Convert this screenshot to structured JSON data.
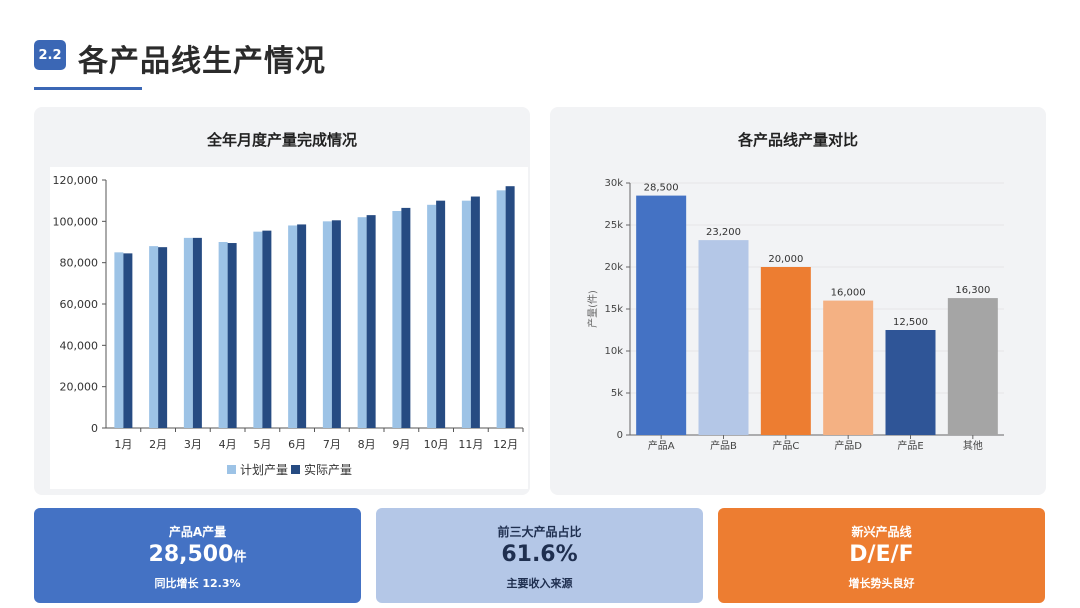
{
  "header": {
    "badge": "2.2",
    "title": "各产品线生产情况"
  },
  "chart_data": [
    {
      "type": "bar",
      "title": "全年月度产量完成情况",
      "categories": [
        "1月",
        "2月",
        "3月",
        "4月",
        "5月",
        "6月",
        "7月",
        "8月",
        "9月",
        "10月",
        "11月",
        "12月"
      ],
      "series": [
        {
          "name": "计划产量",
          "color": "#9dc3e6",
          "values": [
            85000,
            88000,
            92000,
            90000,
            95000,
            98000,
            100000,
            102000,
            105000,
            108000,
            110000,
            115000
          ]
        },
        {
          "name": "实际产量",
          "color": "#264b82",
          "values": [
            84500,
            87500,
            92000,
            89500,
            95500,
            98500,
            100500,
            103000,
            106500,
            110000,
            112000,
            117000
          ]
        }
      ],
      "ylim": [
        0,
        120000
      ],
      "yticks": [
        "0",
        "20,000",
        "40,000",
        "60,000",
        "80,000",
        "100,000",
        "120,000"
      ],
      "legend": "bottom"
    },
    {
      "type": "bar",
      "title": "各产品线产量对比",
      "categories": [
        "产品A",
        "产品B",
        "产品C",
        "产品D",
        "产品E",
        "其他"
      ],
      "values": [
        28500,
        23200,
        20000,
        16000,
        12500,
        16300
      ],
      "value_labels": [
        "28,500",
        "23,200",
        "20,000",
        "16,000",
        "12,500",
        "16,300"
      ],
      "colors": [
        "#4472c4",
        "#b4c7e7",
        "#ed7d31",
        "#f4b183",
        "#2f5597",
        "#a5a5a5"
      ],
      "ylabel": "产量(件)",
      "ylim": [
        0,
        30000
      ],
      "yticks": [
        "0",
        "5k",
        "10k",
        "15k",
        "20k",
        "25k",
        "30k"
      ]
    }
  ],
  "cards": [
    {
      "label": "产品A产量",
      "value": "28,500",
      "unit": "件",
      "sub": "同比增长 12.3%"
    },
    {
      "label": "前三大产品占比",
      "value": "61.6%",
      "unit": "",
      "sub": "主要收入来源"
    },
    {
      "label": "新兴产品线",
      "value": "D/E/F",
      "unit": "",
      "sub": "增长势头良好"
    }
  ]
}
